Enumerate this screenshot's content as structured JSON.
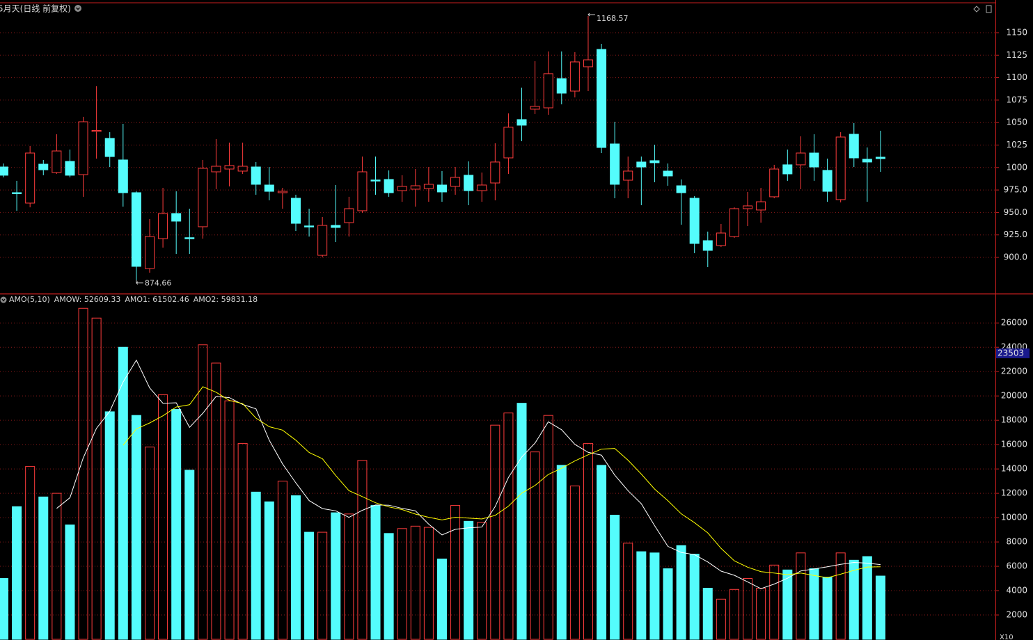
{
  "chart_data": [
    {
      "type": "candlestick",
      "title": "5月天(日线 前复权)",
      "open": [
        1000.6,
        972.0,
        960.4,
        1003.7,
        994.4,
        1006.8,
        992.1,
        1040.5,
        1032.4,
        1008.4,
        972.0,
        887.6,
        920.9,
        948.8,
        921.9,
        934.1,
        995.2,
        998.3,
        996.0,
        1000.6,
        980.5,
        972.0,
        965.8,
        935.0,
        902.3,
        935.6,
        938.7,
        951.9,
        986.1,
        986.7,
        974.3,
        975.9,
        976.6,
        980.5,
        979.0,
        991.4,
        974.3,
        982.8,
        1010.7,
        1053.3,
        1064.9,
        1066.4,
        1098.9,
        1085.0,
        1112.1,
        1131.4,
        1026.2,
        985.9,
        1006.1,
        1007.6,
        996.0,
        979.7,
        965.8,
        918.6,
        913.2,
        923.2,
        954.2,
        952.7,
        967.4,
        1003.0,
        1003.0,
        1016.1,
        996.8,
        964.3,
        1037.0,
        1009.2,
        1011.5
      ],
      "high": [
        1004.5,
        985.2,
        1023.9,
        1008.4,
        1037.0,
        1020.0,
        1056.4,
        1090.4,
        1039.3,
        1048.6,
        973.5,
        942.6,
        977.4,
        973.5,
        954.2,
        1008.4,
        1031.6,
        1027.7,
        1027.7,
        1006.1,
        1000.6,
        977.4,
        969.7,
        954.2,
        944.9,
        980.5,
        967.4,
        1012.2,
        1012.2,
        996.8,
        991.4,
        998.3,
        1000.6,
        996.0,
        1000.6,
        1006.8,
        994.4,
        1027.0,
        1060.2,
        1088.9,
        1118.3,
        1129.1,
        1129.1,
        1128.3,
        1168.57,
        1137.6,
        1050.9,
        1012.2,
        1012.2,
        1025.4,
        1004.5,
        986.7,
        968.1,
        928.7,
        937.2,
        955.7,
        972.8,
        977.4,
        1003.0,
        1020.0,
        1034.7,
        1037.0,
        1009.9,
        1039.3,
        1049.4,
        1022.3,
        1040.9
      ],
      "low": [
        989.0,
        951.9,
        955.7,
        991.4,
        992.9,
        989.0,
        967.4,
        1009.9,
        1000.6,
        956.5,
        874.66,
        883.0,
        910.9,
        903.9,
        903.9,
        920.9,
        975.9,
        979.0,
        992.9,
        969.7,
        963.5,
        954.2,
        929.4,
        923.2,
        900.0,
        917.0,
        923.2,
        949.6,
        969.7,
        967.4,
        961.9,
        956.5,
        961.9,
        961.9,
        969.7,
        958.1,
        961.9,
        963.5,
        992.9,
        1029.3,
        1059.5,
        1058.7,
        1070.3,
        1078.0,
        1085.0,
        1016.1,
        965.8,
        965.8,
        958.1,
        983.6,
        979.7,
        936.4,
        904.7,
        889.2,
        911.6,
        921.7,
        934.8,
        938.7,
        965.8,
        985.2,
        975.9,
        985.2,
        961.9,
        961.2,
        1000.6,
        961.9,
        995.2
      ],
      "close": [
        991.4,
        971.5,
        1016.1,
        997.5,
        1018.4,
        991.4,
        1050.9,
        1041.3,
        1012.2,
        972.0,
        890.0,
        923.2,
        948.8,
        940.3,
        921.5,
        999.1,
        1001.4,
        1002.2,
        1001.4,
        981.3,
        973.5,
        973.5,
        937.9,
        934.6,
        935.6,
        933.3,
        954.2,
        995.2,
        985.7,
        972.0,
        979.0,
        979.7,
        981.3,
        972.8,
        989.0,
        974.3,
        980.5,
        1006.1,
        1044.8,
        1047.1,
        1068.0,
        1104.4,
        1082.7,
        1117.5,
        1119.8,
        1022.3,
        981.3,
        996.0,
        1000.6,
        1005.3,
        990.6,
        972.0,
        915.5,
        907.8,
        927.1,
        954.2,
        957.3,
        961.9,
        998.3,
        992.9,
        1016.1,
        1000.6,
        973.5,
        1033.9,
        1010.7,
        1006.1,
        1009.9
      ],
      "up_color": "#ff3c3c",
      "down_color": "#54fcfc",
      "ylim": [
        861.3,
        1182.5
      ],
      "yticks": [
        {
          "value": 900,
          "label": "900.0"
        },
        {
          "value": 925,
          "label": "925.0"
        },
        {
          "value": 950,
          "label": "950.0"
        },
        {
          "value": 975,
          "label": "975.0"
        },
        1000,
        1025,
        1050,
        1075,
        1100,
        1125,
        1150
      ],
      "grid": true
    },
    {
      "type": "bar",
      "title": "AMO(5,10)",
      "header": {
        "text": "AMOW: 52609.33",
        "color": "#ffffff"
      },
      "values": [
        5000,
        10900,
        14200,
        11700,
        12000,
        9400,
        27200,
        26400,
        18700,
        24000,
        18400,
        15800,
        20100,
        18900,
        13900,
        24200,
        22700,
        19600,
        16100,
        12100,
        11300,
        13000,
        11800,
        8800,
        8800,
        10400,
        10300,
        14700,
        11000,
        8700,
        9100,
        9300,
        9200,
        6600,
        11000,
        9700,
        9600,
        17600,
        18600,
        19400,
        15400,
        18400,
        14300,
        12600,
        16100,
        14300,
        10200,
        7900,
        7200,
        7100,
        5800,
        7700,
        7000,
        4200,
        3300,
        4100,
        5000,
        4200,
        6100,
        5700,
        7100,
        5800,
        5100,
        7100,
        6500,
        6800,
        5200
      ],
      "series": [
        {
          "name": "AMO1: 61502.46",
          "color": "#ffffff",
          "values": [
            null,
            null,
            null,
            null,
            10760,
            11640,
            14900,
            17340,
            18740,
            21140,
            22940,
            20660,
            19400,
            19440,
            17420,
            18580,
            19960,
            19860,
            19300,
            18940,
            16360,
            14420,
            12860,
            11400,
            10740,
            10560,
            10020,
            10600,
            11040,
            11020,
            10760,
            10560,
            9460,
            8580,
            9040,
            9160,
            9220,
            10900,
            13300,
            14980,
            16120,
            17880,
            17220,
            16020,
            15360,
            15140,
            13500,
            12220,
            11140,
            9340,
            7640,
            7140,
            6960,
            6360,
            5600,
            5260,
            4720,
            4160,
            4540,
            5020,
            5620,
            5780,
            5960,
            6160,
            6320,
            6260,
            6140
          ]
        },
        {
          "name": "AMO2: 59831.18",
          "color": "#ffff00",
          "values": [
            null,
            null,
            null,
            null,
            null,
            null,
            null,
            null,
            null,
            15950,
            17290,
            17780,
            18370,
            19090,
            19280,
            20760,
            20310,
            19630,
            19370,
            18180,
            17470,
            17190,
            16360,
            15350,
            14840,
            13460,
            12220,
            11730,
            11220,
            10880,
            10660,
            10290,
            10030,
            9810,
            10030,
            9960,
            9890,
            10180,
            10940,
            12010,
            12640,
            13550,
            14060,
            14660,
            15170,
            15630,
            15690,
            14720,
            13580,
            12350,
            11390,
            10320,
            9590,
            8750,
            7470,
            6450,
            5930,
            5560,
            5450,
            5310,
            5440,
            5250,
            5060,
            5350,
            5670,
            5940,
            5960
          ]
        }
      ],
      "up_color": "#ff3c3c",
      "down_color": "#54fcfc",
      "ylim": [
        0,
        28300
      ],
      "yticks": [
        2000,
        4000,
        6000,
        8000,
        10000,
        12000,
        14000,
        16000,
        18000,
        20000,
        22000,
        24000,
        26000
      ],
      "current_value": 23503,
      "scale_note": "X10",
      "grid": true
    }
  ]
}
